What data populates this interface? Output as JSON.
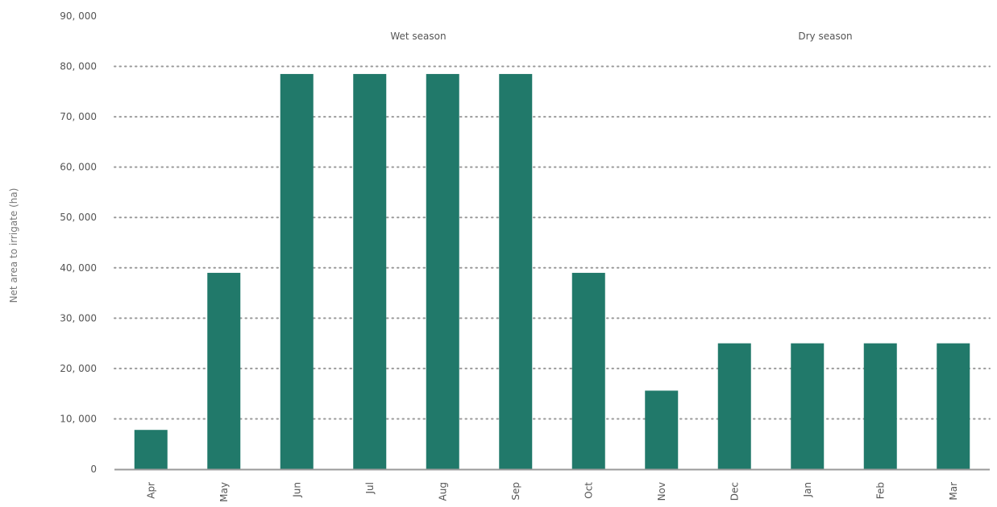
{
  "chart_data": {
    "type": "bar",
    "title": "",
    "xlabel": "",
    "ylabel": "Net area to irrigate (ha)",
    "categories": [
      "Apr",
      "May",
      "Jun",
      "Jul",
      "Aug",
      "Sep",
      "Oct",
      "Nov",
      "Dec",
      "Jan",
      "Feb",
      "Mar"
    ],
    "values": [
      7800,
      39000,
      78500,
      78500,
      78500,
      78500,
      39000,
      15600,
      25000,
      25000,
      25000,
      25000
    ],
    "ylim": [
      0,
      90000
    ],
    "yticks": [
      0,
      10000,
      20000,
      30000,
      40000,
      50000,
      60000,
      70000,
      80000,
      90000
    ],
    "ytick_labels": [
      "0",
      "10, 000",
      "20, 000",
      "30, 000",
      "40, 000",
      "50, 000",
      "60, 000",
      "70, 000",
      "80, 000",
      "90, 000"
    ],
    "grid": "horizontal dotted",
    "annotations": [
      {
        "text": "Wet season",
        "x_category": "Aug",
        "position": "above center of Apr–Sep group"
      },
      {
        "text": "Dry season",
        "x_category": "Jan",
        "position": "above center of Oct–Mar group"
      }
    ],
    "bar_color": "#21796A",
    "grid_color": "#999999",
    "axis_color": "#9a9a9a",
    "text_color": "#555555"
  }
}
